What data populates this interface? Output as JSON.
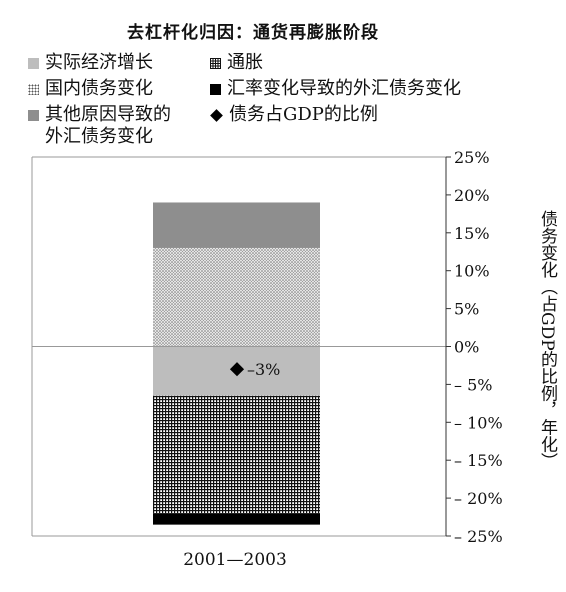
{
  "chart_data": {
    "type": "bar",
    "stacked": true,
    "title": "去杠杆化归因：通货再膨胀阶段",
    "categories": [
      "2001—2003"
    ],
    "ylabel": "债务变化（占GDP的比例，年化）",
    "ylim": [
      -25,
      25
    ],
    "yticks": [
      25,
      20,
      15,
      10,
      5,
      0,
      -5,
      -10,
      -15,
      -20,
      -25
    ],
    "ytick_labels": [
      "25%",
      "20%",
      "15%",
      "10%",
      "5%",
      "0%",
      "– 5%",
      "– 10%",
      "– 15%",
      "– 20%",
      "– 25%"
    ],
    "series": [
      {
        "name": "实际经济增长",
        "values": [
          -6.5
        ],
        "color": "#bdbdbd"
      },
      {
        "name": "通胀",
        "values": [
          -15.5
        ],
        "color": "#111111",
        "pattern": "grid"
      },
      {
        "name": "汇率变化导致的外汇债务变化",
        "values": [
          -1.5
        ],
        "color": "#000000"
      },
      {
        "name": "国内债务变化",
        "values": [
          13.0
        ],
        "color": "#888888",
        "pattern": "dots"
      },
      {
        "name": "其他原因导致的外汇债务变化",
        "values": [
          6.0
        ],
        "color": "#8e8e8e"
      }
    ],
    "marker_series": {
      "name": "债务占GDP的比例",
      "values": [
        -3
      ],
      "label": "–3%"
    },
    "legend": "top"
  },
  "legend": [
    {
      "label": "实际经济增长",
      "swatch": "gray-light"
    },
    {
      "label": "通胀",
      "swatch": "grid"
    },
    {
      "label": "国内债务变化",
      "swatch": "dots"
    },
    {
      "label": "汇率变化导致的外汇债务变化",
      "swatch": "black"
    },
    {
      "label_line1": "其他原因导致的",
      "label_line2": "外汇债务变化",
      "swatch": "gray-dark"
    },
    {
      "label": "债务占GDP的比例",
      "swatch": "diamond"
    }
  ]
}
